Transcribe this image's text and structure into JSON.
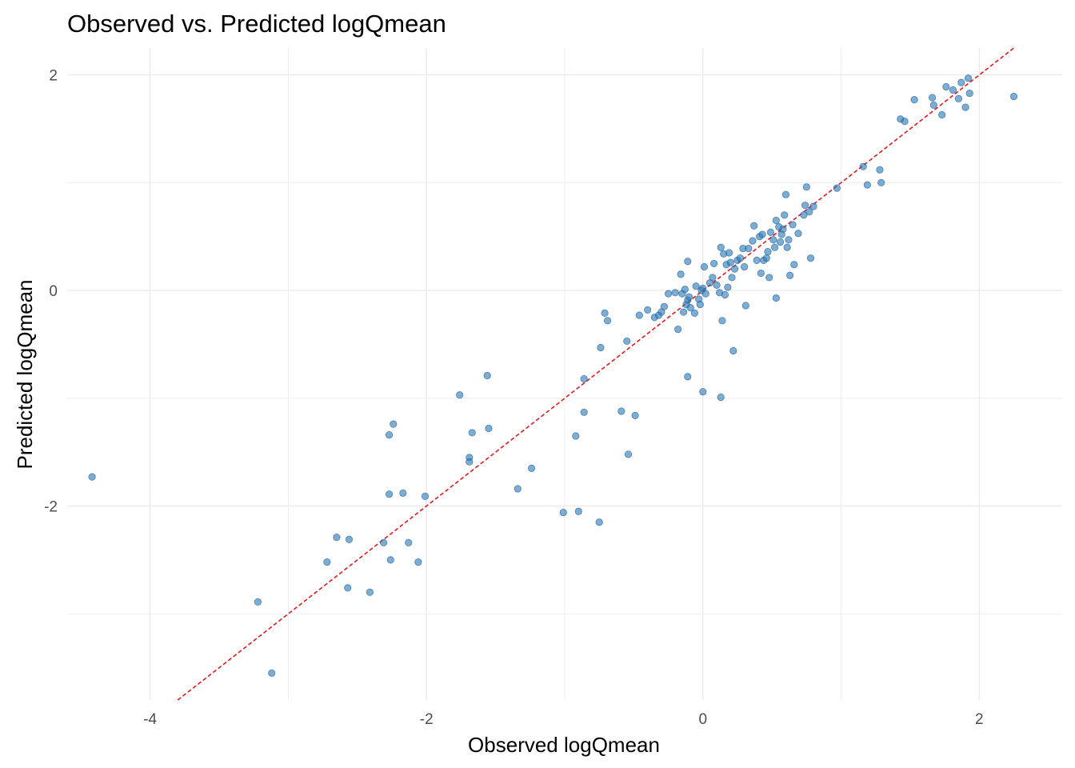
{
  "chart_data": {
    "type": "scatter",
    "title": "Observed vs. Predicted logQmean",
    "xlabel": "Observed logQmean",
    "ylabel": "Predicted logQmean",
    "xlim": [
      -4.6,
      2.6
    ],
    "ylim": [
      -3.8,
      2.25
    ],
    "x_ticks": [
      -4,
      -2,
      0,
      2
    ],
    "y_ticks": [
      -2,
      0,
      2
    ],
    "x_tick_labels": [
      "-4",
      "-2",
      "0",
      "2"
    ],
    "y_tick_labels": [
      "-2",
      "0",
      "2"
    ],
    "grid": true,
    "point_color": "#2b7bba",
    "reference_line": {
      "type": "identity",
      "style": "dashed",
      "color": "#e31a1c"
    },
    "points": [
      [
        -4.42,
        -1.73
      ],
      [
        -3.22,
        -2.89
      ],
      [
        -3.12,
        -3.55
      ],
      [
        -2.72,
        -2.52
      ],
      [
        -2.65,
        -2.29
      ],
      [
        -2.57,
        -2.76
      ],
      [
        -2.56,
        -2.31
      ],
      [
        -2.41,
        -2.8
      ],
      [
        -2.31,
        -2.34
      ],
      [
        -2.27,
        -1.34
      ],
      [
        -2.27,
        -1.89
      ],
      [
        -2.26,
        -2.5
      ],
      [
        -2.24,
        -1.24
      ],
      [
        -2.17,
        -1.88
      ],
      [
        -2.13,
        -2.34
      ],
      [
        -2.06,
        -2.52
      ],
      [
        -2.01,
        -1.91
      ],
      [
        -1.76,
        -0.97
      ],
      [
        -1.69,
        -1.55
      ],
      [
        -1.69,
        -1.59
      ],
      [
        -1.67,
        -1.32
      ],
      [
        -1.56,
        -0.79
      ],
      [
        -1.55,
        -1.28
      ],
      [
        -1.34,
        -1.84
      ],
      [
        -1.24,
        -1.65
      ],
      [
        -1.01,
        -2.06
      ],
      [
        -0.9,
        -2.05
      ],
      [
        -0.92,
        -1.35
      ],
      [
        -0.86,
        -1.13
      ],
      [
        -0.86,
        -0.82
      ],
      [
        -0.75,
        -2.15
      ],
      [
        -0.74,
        -0.53
      ],
      [
        -0.71,
        -0.21
      ],
      [
        -0.69,
        -0.28
      ],
      [
        -0.59,
        -1.12
      ],
      [
        -0.55,
        -0.47
      ],
      [
        -0.54,
        -1.52
      ],
      [
        -0.49,
        -1.16
      ],
      [
        -0.46,
        -0.23
      ],
      [
        -0.4,
        -0.18
      ],
      [
        -0.35,
        -0.25
      ],
      [
        -0.32,
        -0.23
      ],
      [
        -0.3,
        -0.2
      ],
      [
        -0.28,
        -0.15
      ],
      [
        -0.25,
        -0.03
      ],
      [
        -0.2,
        -0.02
      ],
      [
        -0.18,
        -0.36
      ],
      [
        -0.16,
        0.15
      ],
      [
        -0.15,
        -0.03
      ],
      [
        -0.14,
        -0.2
      ],
      [
        -0.13,
        0.01
      ],
      [
        -0.12,
        -0.13
      ],
      [
        -0.11,
        -0.09
      ],
      [
        -0.1,
        -0.06
      ],
      [
        -0.11,
        0.27
      ],
      [
        -0.11,
        -0.8
      ],
      [
        -0.09,
        -0.16
      ],
      [
        -0.06,
        -0.21
      ],
      [
        -0.05,
        0.04
      ],
      [
        -0.03,
        -0.08
      ],
      [
        -0.02,
        -0.13
      ],
      [
        -0.01,
        0.0
      ],
      [
        0.0,
        0.02
      ],
      [
        0.0,
        -0.94
      ],
      [
        0.01,
        0.22
      ],
      [
        0.02,
        -0.03
      ],
      [
        0.05,
        0.07
      ],
      [
        0.07,
        0.12
      ],
      [
        0.08,
        0.25
      ],
      [
        0.1,
        0.05
      ],
      [
        0.12,
        -0.02
      ],
      [
        0.13,
        0.4
      ],
      [
        0.13,
        -0.99
      ],
      [
        0.14,
        -0.28
      ],
      [
        0.15,
        0.34
      ],
      [
        0.16,
        -0.04
      ],
      [
        0.17,
        0.24
      ],
      [
        0.18,
        0.03
      ],
      [
        0.19,
        0.35
      ],
      [
        0.2,
        0.26
      ],
      [
        0.21,
        0.12
      ],
      [
        0.22,
        -0.56
      ],
      [
        0.23,
        0.2
      ],
      [
        0.25,
        0.28
      ],
      [
        0.27,
        0.3
      ],
      [
        0.29,
        0.39
      ],
      [
        0.3,
        0.22
      ],
      [
        0.31,
        -0.14
      ],
      [
        0.33,
        0.39
      ],
      [
        0.36,
        0.46
      ],
      [
        0.37,
        0.6
      ],
      [
        0.39,
        0.28
      ],
      [
        0.41,
        0.5
      ],
      [
        0.42,
        0.16
      ],
      [
        0.43,
        0.52
      ],
      [
        0.44,
        0.28
      ],
      [
        0.46,
        0.3
      ],
      [
        0.47,
        0.36
      ],
      [
        0.48,
        0.12
      ],
      [
        0.49,
        0.54
      ],
      [
        0.51,
        0.47
      ],
      [
        0.52,
        0.4
      ],
      [
        0.53,
        -0.07
      ],
      [
        0.53,
        0.65
      ],
      [
        0.55,
        0.59
      ],
      [
        0.56,
        0.45
      ],
      [
        0.57,
        0.52
      ],
      [
        0.58,
        0.57
      ],
      [
        0.59,
        0.7
      ],
      [
        0.6,
        0.89
      ],
      [
        0.61,
        0.4
      ],
      [
        0.62,
        0.47
      ],
      [
        0.63,
        0.14
      ],
      [
        0.65,
        0.61
      ],
      [
        0.66,
        0.24
      ],
      [
        0.69,
        0.53
      ],
      [
        0.73,
        0.7
      ],
      [
        0.74,
        0.79
      ],
      [
        0.75,
        0.96
      ],
      [
        0.77,
        0.73
      ],
      [
        0.78,
        0.3
      ],
      [
        0.8,
        0.78
      ],
      [
        0.97,
        0.95
      ],
      [
        1.16,
        1.15
      ],
      [
        1.19,
        0.98
      ],
      [
        1.28,
        1.12
      ],
      [
        1.29,
        1.0
      ],
      [
        1.43,
        1.59
      ],
      [
        1.46,
        1.57
      ],
      [
        1.53,
        1.77
      ],
      [
        1.66,
        1.79
      ],
      [
        1.67,
        1.72
      ],
      [
        1.73,
        1.63
      ],
      [
        1.76,
        1.89
      ],
      [
        1.81,
        1.86
      ],
      [
        1.85,
        1.78
      ],
      [
        1.87,
        1.93
      ],
      [
        1.9,
        1.7
      ],
      [
        1.92,
        1.97
      ],
      [
        1.93,
        1.83
      ],
      [
        2.25,
        1.8
      ]
    ]
  }
}
